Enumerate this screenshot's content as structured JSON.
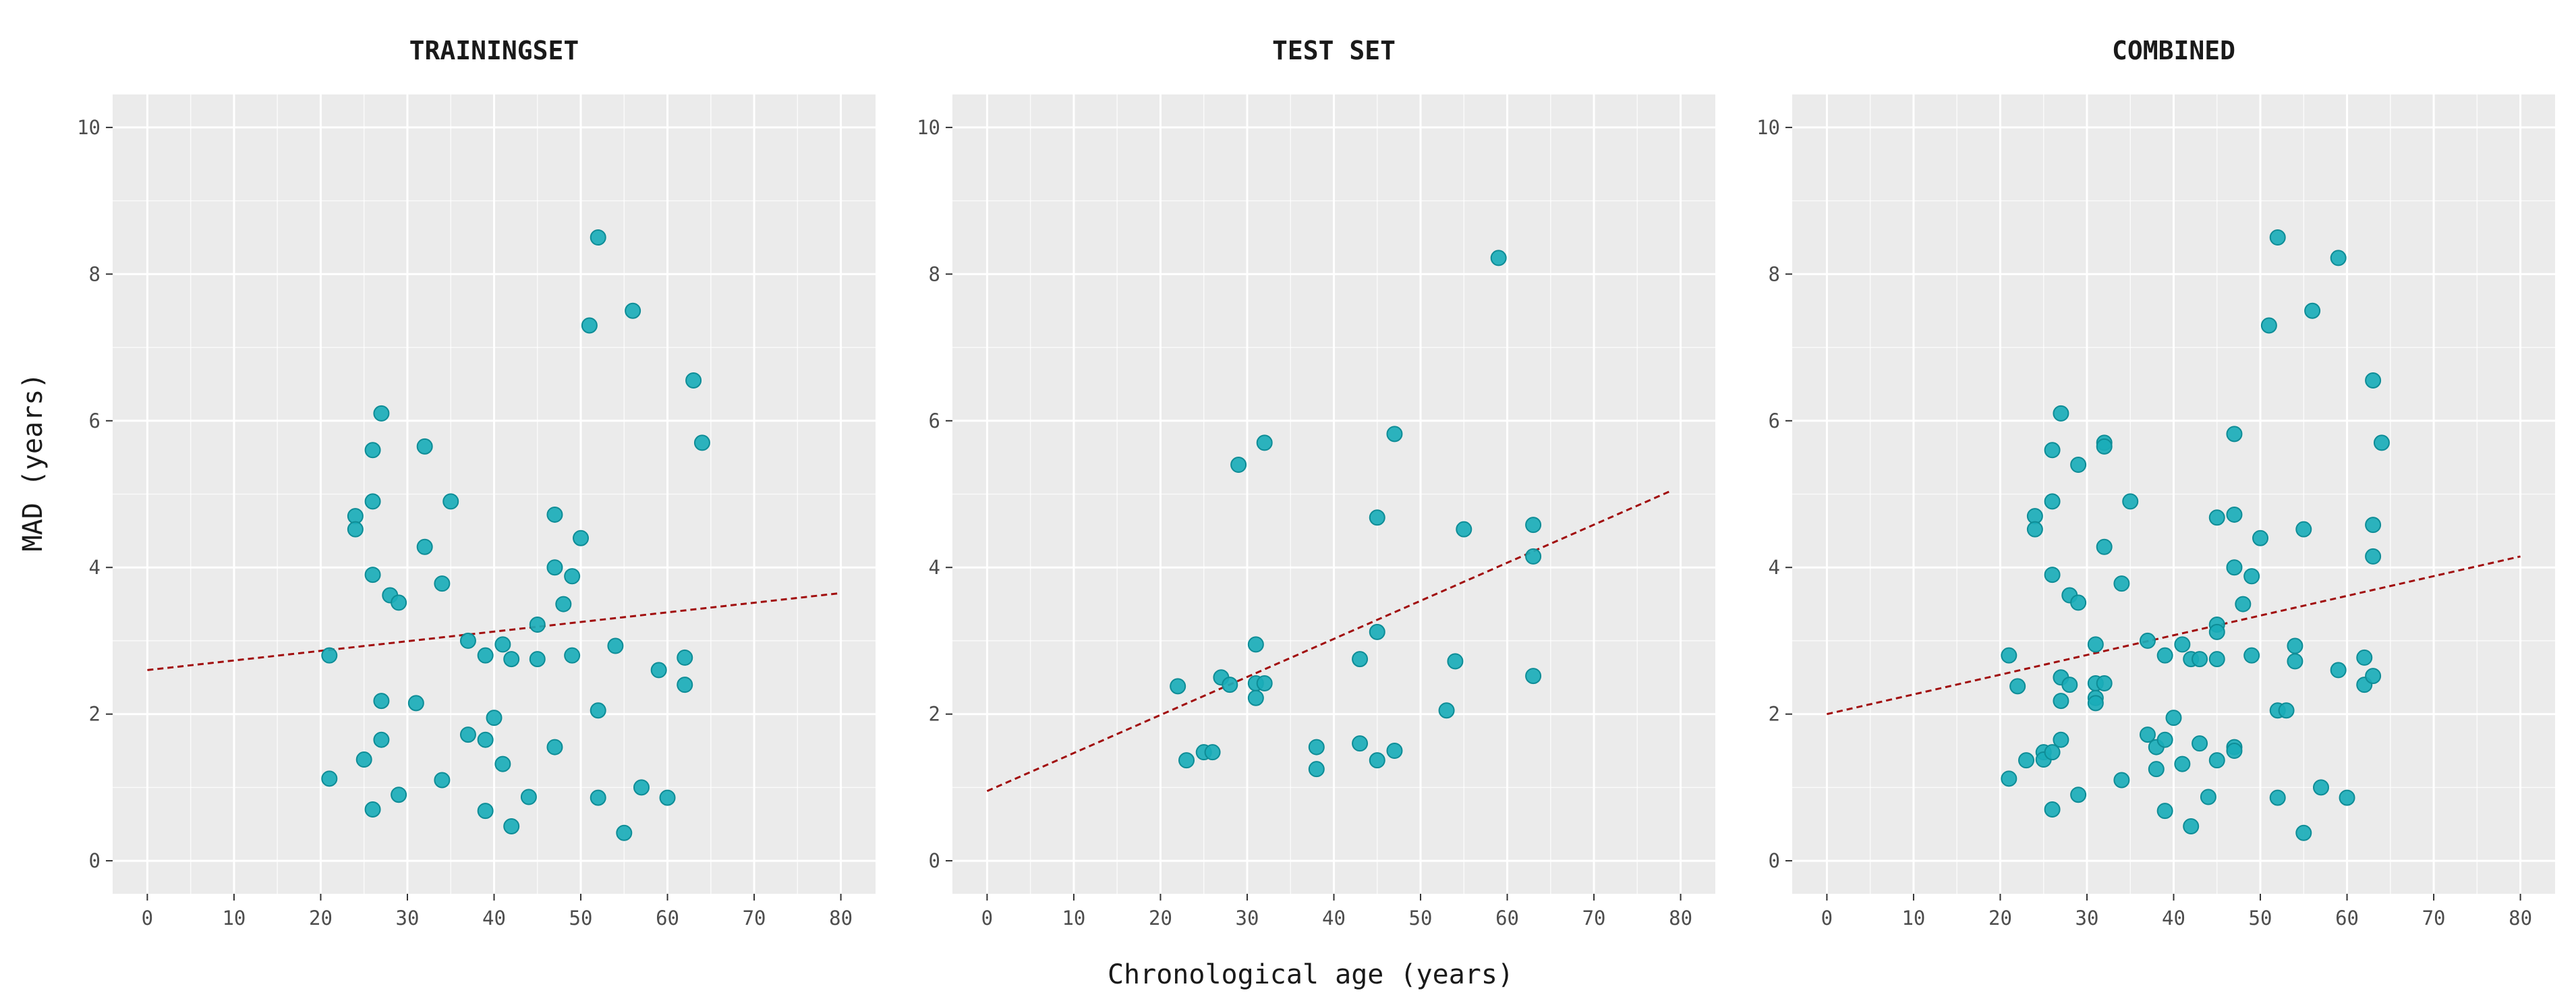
{
  "colors": {
    "point": "#1aadb8",
    "point_stroke": "#0e8c96",
    "trend": "#a10d0d"
  },
  "xlabel": "Chronological age (years)",
  "ylabel": "MAD (years)",
  "chart_data": [
    {
      "type": "scatter",
      "title": "TRAININGSET",
      "xlim": [
        -4,
        84
      ],
      "ylim": [
        -0.45,
        10.45
      ],
      "xticks": [
        0,
        10,
        20,
        30,
        40,
        50,
        60,
        70,
        80
      ],
      "yticks": [
        0,
        2,
        4,
        6,
        8,
        10
      ],
      "grid": true,
      "points": [
        [
          21,
          2.8
        ],
        [
          21,
          1.12
        ],
        [
          24,
          4.7
        ],
        [
          24,
          4.52
        ],
        [
          25,
          1.38
        ],
        [
          26,
          5.6
        ],
        [
          26,
          4.9
        ],
        [
          26,
          3.9
        ],
        [
          26,
          0.7
        ],
        [
          27,
          6.1
        ],
        [
          27,
          2.18
        ],
        [
          27,
          1.65
        ],
        [
          28,
          3.62
        ],
        [
          29,
          3.52
        ],
        [
          29,
          0.9
        ],
        [
          31,
          2.15
        ],
        [
          32,
          5.65
        ],
        [
          32,
          4.28
        ],
        [
          34,
          3.78
        ],
        [
          34,
          1.1
        ],
        [
          35,
          4.9
        ],
        [
          37,
          3.0
        ],
        [
          37,
          1.72
        ],
        [
          39,
          2.8
        ],
        [
          39,
          1.65
        ],
        [
          39,
          0.68
        ],
        [
          40,
          1.95
        ],
        [
          41,
          2.95
        ],
        [
          41,
          1.32
        ],
        [
          42,
          2.75
        ],
        [
          42,
          0.47
        ],
        [
          44,
          0.87
        ],
        [
          45,
          3.22
        ],
        [
          45,
          2.75
        ],
        [
          47,
          4.72
        ],
        [
          47,
          4.0
        ],
        [
          47,
          1.55
        ],
        [
          48,
          3.5
        ],
        [
          49,
          3.88
        ],
        [
          49,
          2.8
        ],
        [
          50,
          4.4
        ],
        [
          51,
          7.3
        ],
        [
          52,
          8.5
        ],
        [
          52,
          2.05
        ],
        [
          52,
          0.86
        ],
        [
          54,
          2.93
        ],
        [
          55,
          0.38
        ],
        [
          56,
          7.5
        ],
        [
          57,
          1.0
        ],
        [
          59,
          2.6
        ],
        [
          60,
          0.86
        ],
        [
          62,
          2.77
        ],
        [
          62,
          2.4
        ],
        [
          63,
          6.55
        ],
        [
          64,
          5.7
        ]
      ],
      "trend": {
        "x": [
          0,
          80
        ],
        "y": [
          2.6,
          3.65
        ]
      }
    },
    {
      "type": "scatter",
      "title": "TEST SET",
      "xlim": [
        -4,
        84
      ],
      "ylim": [
        -0.45,
        10.45
      ],
      "xticks": [
        0,
        10,
        20,
        30,
        40,
        50,
        60,
        70,
        80
      ],
      "yticks": [
        0,
        2,
        4,
        6,
        8,
        10
      ],
      "grid": true,
      "points": [
        [
          22,
          2.38
        ],
        [
          23,
          1.37
        ],
        [
          25,
          1.48
        ],
        [
          26,
          1.48
        ],
        [
          27,
          2.5
        ],
        [
          28,
          2.4
        ],
        [
          29,
          5.4
        ],
        [
          31,
          2.95
        ],
        [
          31,
          2.42
        ],
        [
          31,
          2.22
        ],
        [
          32,
          5.7
        ],
        [
          32,
          2.42
        ],
        [
          38,
          1.55
        ],
        [
          38,
          1.25
        ],
        [
          43,
          2.75
        ],
        [
          43,
          1.6
        ],
        [
          45,
          4.68
        ],
        [
          45,
          3.12
        ],
        [
          45,
          1.37
        ],
        [
          47,
          5.82
        ],
        [
          47,
          1.5
        ],
        [
          53,
          2.05
        ],
        [
          54,
          2.72
        ],
        [
          55,
          4.52
        ],
        [
          59,
          8.22
        ],
        [
          63,
          4.58
        ],
        [
          63,
          4.15
        ],
        [
          63,
          2.52
        ]
      ],
      "trend": {
        "x": [
          0,
          79
        ],
        "y": [
          0.95,
          5.05
        ]
      }
    },
    {
      "type": "scatter",
      "title": "COMBINED",
      "xlim": [
        -4,
        84
      ],
      "ylim": [
        -0.45,
        10.45
      ],
      "xticks": [
        0,
        10,
        20,
        30,
        40,
        50,
        60,
        70,
        80
      ],
      "yticks": [
        0,
        2,
        4,
        6,
        8,
        10
      ],
      "grid": true,
      "points": [
        [
          21,
          2.8
        ],
        [
          21,
          1.12
        ],
        [
          22,
          2.38
        ],
        [
          23,
          1.37
        ],
        [
          24,
          4.7
        ],
        [
          24,
          4.52
        ],
        [
          25,
          1.48
        ],
        [
          25,
          1.38
        ],
        [
          26,
          1.48
        ],
        [
          26,
          5.6
        ],
        [
          26,
          4.9
        ],
        [
          26,
          3.9
        ],
        [
          26,
          0.7
        ],
        [
          27,
          6.1
        ],
        [
          27,
          2.5
        ],
        [
          27,
          2.18
        ],
        [
          27,
          1.65
        ],
        [
          28,
          2.4
        ],
        [
          28,
          3.62
        ],
        [
          29,
          5.4
        ],
        [
          29,
          3.52
        ],
        [
          29,
          0.9
        ],
        [
          31,
          2.95
        ],
        [
          31,
          2.42
        ],
        [
          31,
          2.22
        ],
        [
          31,
          2.15
        ],
        [
          32,
          5.7
        ],
        [
          32,
          5.65
        ],
        [
          32,
          4.28
        ],
        [
          32,
          2.42
        ],
        [
          34,
          3.78
        ],
        [
          34,
          1.1
        ],
        [
          35,
          4.9
        ],
        [
          37,
          3.0
        ],
        [
          37,
          1.72
        ],
        [
          38,
          1.55
        ],
        [
          38,
          1.25
        ],
        [
          39,
          2.8
        ],
        [
          39,
          1.65
        ],
        [
          39,
          0.68
        ],
        [
          40,
          1.95
        ],
        [
          41,
          2.95
        ],
        [
          41,
          1.32
        ],
        [
          42,
          2.75
        ],
        [
          42,
          0.47
        ],
        [
          43,
          2.75
        ],
        [
          43,
          1.6
        ],
        [
          44,
          0.87
        ],
        [
          45,
          4.68
        ],
        [
          45,
          3.22
        ],
        [
          45,
          3.12
        ],
        [
          45,
          2.75
        ],
        [
          45,
          1.37
        ],
        [
          47,
          5.82
        ],
        [
          47,
          4.72
        ],
        [
          47,
          4.0
        ],
        [
          47,
          1.55
        ],
        [
          47,
          1.5
        ],
        [
          48,
          3.5
        ],
        [
          49,
          3.88
        ],
        [
          49,
          2.8
        ],
        [
          50,
          4.4
        ],
        [
          51,
          7.3
        ],
        [
          52,
          8.5
        ],
        [
          52,
          2.05
        ],
        [
          52,
          0.86
        ],
        [
          53,
          2.05
        ],
        [
          54,
          2.93
        ],
        [
          54,
          2.72
        ],
        [
          55,
          4.52
        ],
        [
          55,
          0.38
        ],
        [
          56,
          7.5
        ],
        [
          57,
          1.0
        ],
        [
          59,
          8.22
        ],
        [
          59,
          2.6
        ],
        [
          60,
          0.86
        ],
        [
          62,
          2.77
        ],
        [
          62,
          2.4
        ],
        [
          63,
          6.55
        ],
        [
          63,
          4.58
        ],
        [
          63,
          4.15
        ],
        [
          63,
          2.52
        ],
        [
          64,
          5.7
        ]
      ],
      "trend": {
        "x": [
          0,
          80
        ],
        "y": [
          2.0,
          4.15
        ]
      }
    }
  ]
}
